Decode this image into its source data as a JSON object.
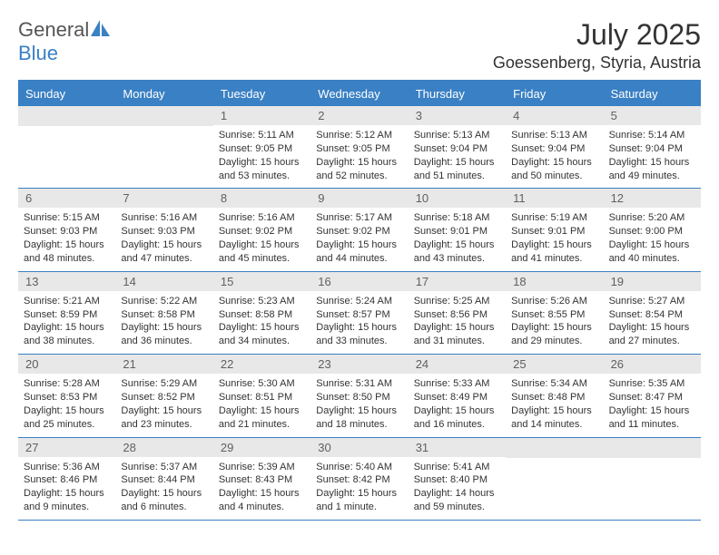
{
  "logo": {
    "text1": "General",
    "text2": "Blue"
  },
  "title": "July 2025",
  "location": "Goessenberg, Styria, Austria",
  "colors": {
    "accent": "#3a80c4",
    "header_bg": "#3a80c4",
    "daynum_bg": "#e8e8e8",
    "text": "#333333"
  },
  "dayNames": [
    "Sunday",
    "Monday",
    "Tuesday",
    "Wednesday",
    "Thursday",
    "Friday",
    "Saturday"
  ],
  "weeks": [
    [
      null,
      null,
      {
        "n": "1",
        "sr": "5:11 AM",
        "ss": "9:05 PM",
        "dl": "15 hours and 53 minutes."
      },
      {
        "n": "2",
        "sr": "5:12 AM",
        "ss": "9:05 PM",
        "dl": "15 hours and 52 minutes."
      },
      {
        "n": "3",
        "sr": "5:13 AM",
        "ss": "9:04 PM",
        "dl": "15 hours and 51 minutes."
      },
      {
        "n": "4",
        "sr": "5:13 AM",
        "ss": "9:04 PM",
        "dl": "15 hours and 50 minutes."
      },
      {
        "n": "5",
        "sr": "5:14 AM",
        "ss": "9:04 PM",
        "dl": "15 hours and 49 minutes."
      }
    ],
    [
      {
        "n": "6",
        "sr": "5:15 AM",
        "ss": "9:03 PM",
        "dl": "15 hours and 48 minutes."
      },
      {
        "n": "7",
        "sr": "5:16 AM",
        "ss": "9:03 PM",
        "dl": "15 hours and 47 minutes."
      },
      {
        "n": "8",
        "sr": "5:16 AM",
        "ss": "9:02 PM",
        "dl": "15 hours and 45 minutes."
      },
      {
        "n": "9",
        "sr": "5:17 AM",
        "ss": "9:02 PM",
        "dl": "15 hours and 44 minutes."
      },
      {
        "n": "10",
        "sr": "5:18 AM",
        "ss": "9:01 PM",
        "dl": "15 hours and 43 minutes."
      },
      {
        "n": "11",
        "sr": "5:19 AM",
        "ss": "9:01 PM",
        "dl": "15 hours and 41 minutes."
      },
      {
        "n": "12",
        "sr": "5:20 AM",
        "ss": "9:00 PM",
        "dl": "15 hours and 40 minutes."
      }
    ],
    [
      {
        "n": "13",
        "sr": "5:21 AM",
        "ss": "8:59 PM",
        "dl": "15 hours and 38 minutes."
      },
      {
        "n": "14",
        "sr": "5:22 AM",
        "ss": "8:58 PM",
        "dl": "15 hours and 36 minutes."
      },
      {
        "n": "15",
        "sr": "5:23 AM",
        "ss": "8:58 PM",
        "dl": "15 hours and 34 minutes."
      },
      {
        "n": "16",
        "sr": "5:24 AM",
        "ss": "8:57 PM",
        "dl": "15 hours and 33 minutes."
      },
      {
        "n": "17",
        "sr": "5:25 AM",
        "ss": "8:56 PM",
        "dl": "15 hours and 31 minutes."
      },
      {
        "n": "18",
        "sr": "5:26 AM",
        "ss": "8:55 PM",
        "dl": "15 hours and 29 minutes."
      },
      {
        "n": "19",
        "sr": "5:27 AM",
        "ss": "8:54 PM",
        "dl": "15 hours and 27 minutes."
      }
    ],
    [
      {
        "n": "20",
        "sr": "5:28 AM",
        "ss": "8:53 PM",
        "dl": "15 hours and 25 minutes."
      },
      {
        "n": "21",
        "sr": "5:29 AM",
        "ss": "8:52 PM",
        "dl": "15 hours and 23 minutes."
      },
      {
        "n": "22",
        "sr": "5:30 AM",
        "ss": "8:51 PM",
        "dl": "15 hours and 21 minutes."
      },
      {
        "n": "23",
        "sr": "5:31 AM",
        "ss": "8:50 PM",
        "dl": "15 hours and 18 minutes."
      },
      {
        "n": "24",
        "sr": "5:33 AM",
        "ss": "8:49 PM",
        "dl": "15 hours and 16 minutes."
      },
      {
        "n": "25",
        "sr": "5:34 AM",
        "ss": "8:48 PM",
        "dl": "15 hours and 14 minutes."
      },
      {
        "n": "26",
        "sr": "5:35 AM",
        "ss": "8:47 PM",
        "dl": "15 hours and 11 minutes."
      }
    ],
    [
      {
        "n": "27",
        "sr": "5:36 AM",
        "ss": "8:46 PM",
        "dl": "15 hours and 9 minutes."
      },
      {
        "n": "28",
        "sr": "5:37 AM",
        "ss": "8:44 PM",
        "dl": "15 hours and 6 minutes."
      },
      {
        "n": "29",
        "sr": "5:39 AM",
        "ss": "8:43 PM",
        "dl": "15 hours and 4 minutes."
      },
      {
        "n": "30",
        "sr": "5:40 AM",
        "ss": "8:42 PM",
        "dl": "15 hours and 1 minute."
      },
      {
        "n": "31",
        "sr": "5:41 AM",
        "ss": "8:40 PM",
        "dl": "14 hours and 59 minutes."
      },
      null,
      null
    ]
  ],
  "labels": {
    "sunrise": "Sunrise:",
    "sunset": "Sunset:",
    "daylight": "Daylight:"
  }
}
